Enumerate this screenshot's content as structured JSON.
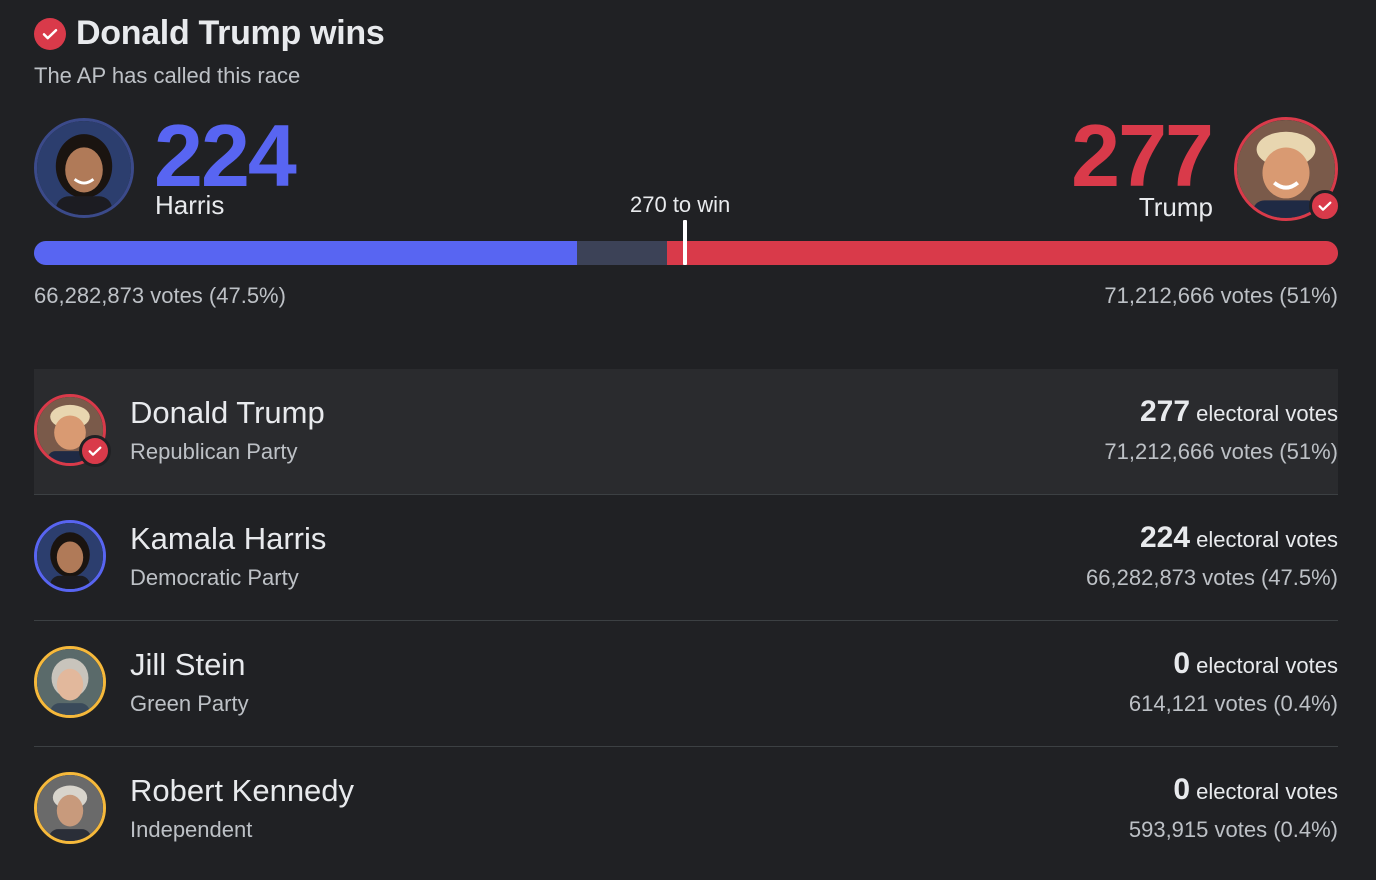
{
  "header": {
    "title": "Donald Trump wins",
    "subtitle": "The AP has called this race"
  },
  "summary": {
    "left": {
      "electoral": "224",
      "name": "Harris",
      "votes": "66,282,873 votes (47.5%)",
      "color": "#5865f2"
    },
    "right": {
      "electoral": "277",
      "name": "Trump",
      "votes": "71,212,666 votes (51%)",
      "color": "#d93a4a"
    },
    "to_win_label": "270 to win",
    "bar": {
      "total": 538,
      "harris": 224,
      "uncalled": 37,
      "trump": 277,
      "uncalled_color": "#3c4257"
    }
  },
  "candidates": [
    {
      "name": "Donald Trump",
      "party": "Republican Party",
      "electoral": "277",
      "electoral_suffix": "electoral votes",
      "votes": "71,212,666 votes (51%)",
      "ring": "#d93a4a",
      "winner": true
    },
    {
      "name": "Kamala Harris",
      "party": "Democratic Party",
      "electoral": "224",
      "electoral_suffix": "electoral votes",
      "votes": "66,282,873 votes (47.5%)",
      "ring": "#5865f2",
      "winner": false
    },
    {
      "name": "Jill Stein",
      "party": "Green Party",
      "electoral": "0",
      "electoral_suffix": "electoral votes",
      "votes": "614,121 votes (0.4%)",
      "ring": "#f6b93b",
      "winner": false
    },
    {
      "name": "Robert Kennedy",
      "party": "Independent",
      "electoral": "0",
      "electoral_suffix": "electoral votes",
      "votes": "593,915 votes (0.4%)",
      "ring": "#f6b93b",
      "winner": false
    }
  ],
  "icons": {
    "winner": "check-circle-icon"
  }
}
